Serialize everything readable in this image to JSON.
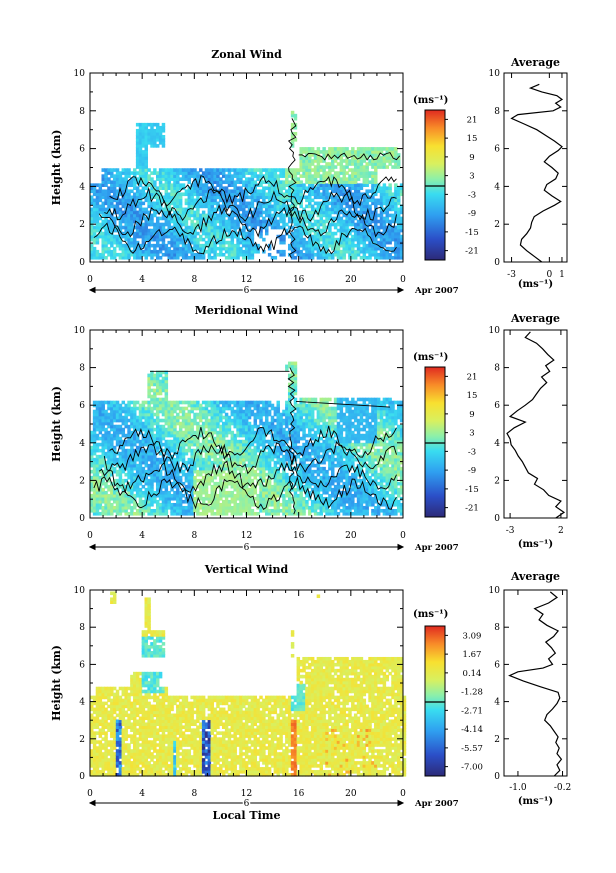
{
  "chart_data": [
    {
      "type": "heatmap",
      "title": "Zonal Wind",
      "ylabel": "Height (km)",
      "xticks": [
        "0",
        "4",
        "8",
        "12",
        "16",
        "20",
        "0"
      ],
      "yticks": [
        "0",
        "2",
        "4",
        "6",
        "8",
        "10"
      ],
      "xlim": [
        0,
        24
      ],
      "ylim": [
        0,
        10
      ],
      "day_label": "6",
      "date_label": "Apr 2007",
      "colorbar": {
        "unit": "(ms⁻¹)",
        "ticks": [
          "21",
          "15",
          "9",
          "3",
          "-3",
          "-9",
          "-15",
          "-21"
        ],
        "range": [
          -24,
          24
        ]
      },
      "average": {
        "title": "Average",
        "xlabel": "(ms⁻¹)",
        "xticks": [
          "-3",
          "0",
          "1"
        ],
        "xtick_values": [
          -3,
          0,
          1
        ],
        "xlim": [
          -3.6,
          1.4
        ],
        "yticks": [
          "0",
          "2",
          "4",
          "6",
          "8",
          "10"
        ],
        "profile": [
          [
            0.0,
            -0.6
          ],
          [
            0.3,
            -1.2
          ],
          [
            0.6,
            -1.8
          ],
          [
            0.9,
            -2.3
          ],
          [
            1.2,
            -2.2
          ],
          [
            1.5,
            -1.8
          ],
          [
            1.8,
            -1.5
          ],
          [
            2.1,
            -1.4
          ],
          [
            2.4,
            -1.2
          ],
          [
            2.7,
            -0.5
          ],
          [
            3.0,
            0.4
          ],
          [
            3.2,
            0.9
          ],
          [
            3.5,
            0.2
          ],
          [
            3.8,
            -0.4
          ],
          [
            4.1,
            -0.2
          ],
          [
            4.4,
            0.5
          ],
          [
            4.7,
            0.7
          ],
          [
            5.0,
            0.2
          ],
          [
            5.3,
            -0.4
          ],
          [
            5.6,
            0.0
          ],
          [
            5.9,
            0.7
          ],
          [
            6.1,
            1.0
          ],
          [
            6.4,
            0.4
          ],
          [
            6.7,
            -0.3
          ],
          [
            7.0,
            -1.0
          ],
          [
            7.3,
            -2.0
          ],
          [
            7.6,
            -3.0
          ],
          [
            7.8,
            -2.5
          ],
          [
            8.0,
            0.3
          ],
          [
            8.2,
            0.9
          ],
          [
            8.4,
            0.5
          ],
          [
            8.6,
            1.0
          ],
          [
            8.8,
            0.6
          ],
          [
            9.0,
            -0.6
          ],
          [
            9.2,
            -1.5
          ],
          [
            9.4,
            -0.8
          ]
        ]
      }
    },
    {
      "type": "heatmap",
      "title": "Meridional Wind",
      "ylabel": "Height (km)",
      "xticks": [
        "0",
        "4",
        "8",
        "12",
        "16",
        "20",
        "0"
      ],
      "yticks": [
        "0",
        "2",
        "4",
        "6",
        "8",
        "10"
      ],
      "xlim": [
        0,
        24
      ],
      "ylim": [
        0,
        10
      ],
      "day_label": "6",
      "date_label": "Apr 2007",
      "colorbar": {
        "unit": "(ms⁻¹)",
        "ticks": [
          "21",
          "15",
          "9",
          "3",
          "-3",
          "-9",
          "-15",
          "-21"
        ],
        "range": [
          -24,
          24
        ]
      },
      "average": {
        "title": "Average",
        "xlabel": "(ms⁻¹)",
        "xticks": [
          "-3",
          "2"
        ],
        "xtick_values": [
          -3,
          2
        ],
        "xlim": [
          -3.6,
          2.6
        ],
        "yticks": [
          "0",
          "2",
          "4",
          "6",
          "8",
          "10"
        ],
        "profile": [
          [
            0.0,
            1.5
          ],
          [
            0.3,
            2.3
          ],
          [
            0.6,
            1.5
          ],
          [
            0.9,
            2.0
          ],
          [
            1.2,
            0.8
          ],
          [
            1.5,
            0.3
          ],
          [
            1.8,
            -0.6
          ],
          [
            2.1,
            -0.3
          ],
          [
            2.4,
            -1.2
          ],
          [
            2.7,
            -1.5
          ],
          [
            3.0,
            -1.8
          ],
          [
            3.3,
            -2.2
          ],
          [
            3.6,
            -2.5
          ],
          [
            3.9,
            -2.9
          ],
          [
            4.2,
            -3.0
          ],
          [
            4.5,
            -3.3
          ],
          [
            4.8,
            -2.6
          ],
          [
            5.1,
            -1.5
          ],
          [
            5.4,
            -3.0
          ],
          [
            5.7,
            -2.3
          ],
          [
            6.0,
            -1.5
          ],
          [
            6.3,
            -0.8
          ],
          [
            6.6,
            -0.4
          ],
          [
            6.9,
            0.0
          ],
          [
            7.2,
            0.6
          ],
          [
            7.5,
            0.1
          ],
          [
            7.8,
            0.9
          ],
          [
            8.1,
            0.5
          ],
          [
            8.4,
            1.3
          ],
          [
            8.7,
            0.7
          ],
          [
            9.0,
            0.2
          ],
          [
            9.3,
            -0.4
          ],
          [
            9.6,
            -1.5
          ],
          [
            9.9,
            -1.0
          ]
        ]
      }
    },
    {
      "type": "heatmap",
      "title": "Vertical Wind",
      "ylabel": "Height (km)",
      "xlabel": "Local Time",
      "xticks": [
        "0",
        "4",
        "8",
        "12",
        "16",
        "20",
        "0"
      ],
      "yticks": [
        "0",
        "2",
        "4",
        "6",
        "8",
        "10"
      ],
      "xlim": [
        0,
        24
      ],
      "ylim": [
        0,
        10
      ],
      "day_label": "6",
      "date_label": "Apr 2007",
      "colorbar": {
        "unit": "(ms⁻¹)",
        "ticks": [
          "3.09",
          "1.67",
          "0.14",
          "-1.28",
          "-2.71",
          "-4.14",
          "-5.57",
          "-7.00"
        ],
        "range": [
          -7.71,
          3.8
        ]
      },
      "average": {
        "title": "Average",
        "xlabel": "(ms⁻¹)",
        "xticks": [
          "-1.0",
          "-0.2"
        ],
        "xtick_values": [
          -1.0,
          -0.2
        ],
        "xlim": [
          -1.25,
          -0.12
        ],
        "yticks": [
          "0",
          "2",
          "4",
          "6",
          "8",
          "10"
        ],
        "profile": [
          [
            0.0,
            -0.35
          ],
          [
            0.3,
            -0.25
          ],
          [
            0.6,
            -0.3
          ],
          [
            0.9,
            -0.22
          ],
          [
            1.2,
            -0.3
          ],
          [
            1.5,
            -0.26
          ],
          [
            1.8,
            -0.32
          ],
          [
            2.1,
            -0.28
          ],
          [
            2.4,
            -0.35
          ],
          [
            2.7,
            -0.42
          ],
          [
            3.0,
            -0.52
          ],
          [
            3.3,
            -0.48
          ],
          [
            3.6,
            -0.38
          ],
          [
            3.9,
            -0.3
          ],
          [
            4.2,
            -0.25
          ],
          [
            4.5,
            -0.28
          ],
          [
            4.8,
            -0.6
          ],
          [
            5.1,
            -0.9
          ],
          [
            5.4,
            -1.15
          ],
          [
            5.6,
            -1.0
          ],
          [
            5.8,
            -0.55
          ],
          [
            6.0,
            -0.38
          ],
          [
            6.3,
            -0.45
          ],
          [
            6.6,
            -0.33
          ],
          [
            6.9,
            -0.4
          ],
          [
            7.2,
            -0.5
          ],
          [
            7.5,
            -0.36
          ],
          [
            7.8,
            -0.28
          ],
          [
            8.1,
            -0.48
          ],
          [
            8.4,
            -0.62
          ],
          [
            8.7,
            -0.55
          ],
          [
            9.0,
            -0.7
          ],
          [
            9.3,
            -0.45
          ],
          [
            9.6,
            -0.3
          ],
          [
            9.9,
            -0.42
          ]
        ]
      }
    }
  ]
}
